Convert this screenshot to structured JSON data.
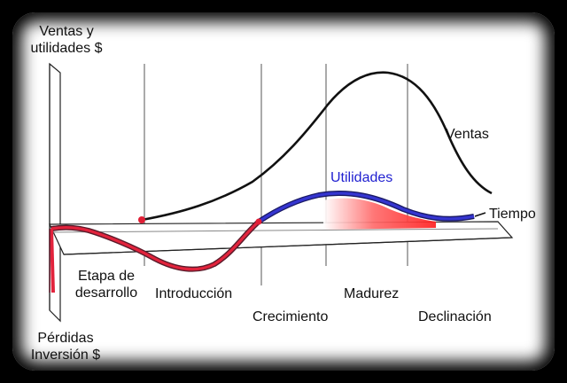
{
  "yaxis_top_label_line1": "Ventas y",
  "yaxis_top_label_line2": "utilidades $",
  "yaxis_bottom_label_line1": "Pérdidas",
  "yaxis_bottom_label_line2": "Inversión $",
  "curves": {
    "sales_label": "Ventas",
    "profit_label": "Utilidades",
    "time_label": "Tiempo"
  },
  "stages": {
    "development_line1": "Etapa de",
    "development_line2": "desarrollo",
    "introduction": "Introducción",
    "growth": "Crecimiento",
    "maturity": "Madurez",
    "decline": "Declinación"
  },
  "colors": {
    "sales_curve": "#111111",
    "profit_curve": "#2b2bb8",
    "loss_curve": "#d2203a",
    "profit_fill": "#ff3b3b",
    "profit_label": "#1f1fd0"
  }
}
